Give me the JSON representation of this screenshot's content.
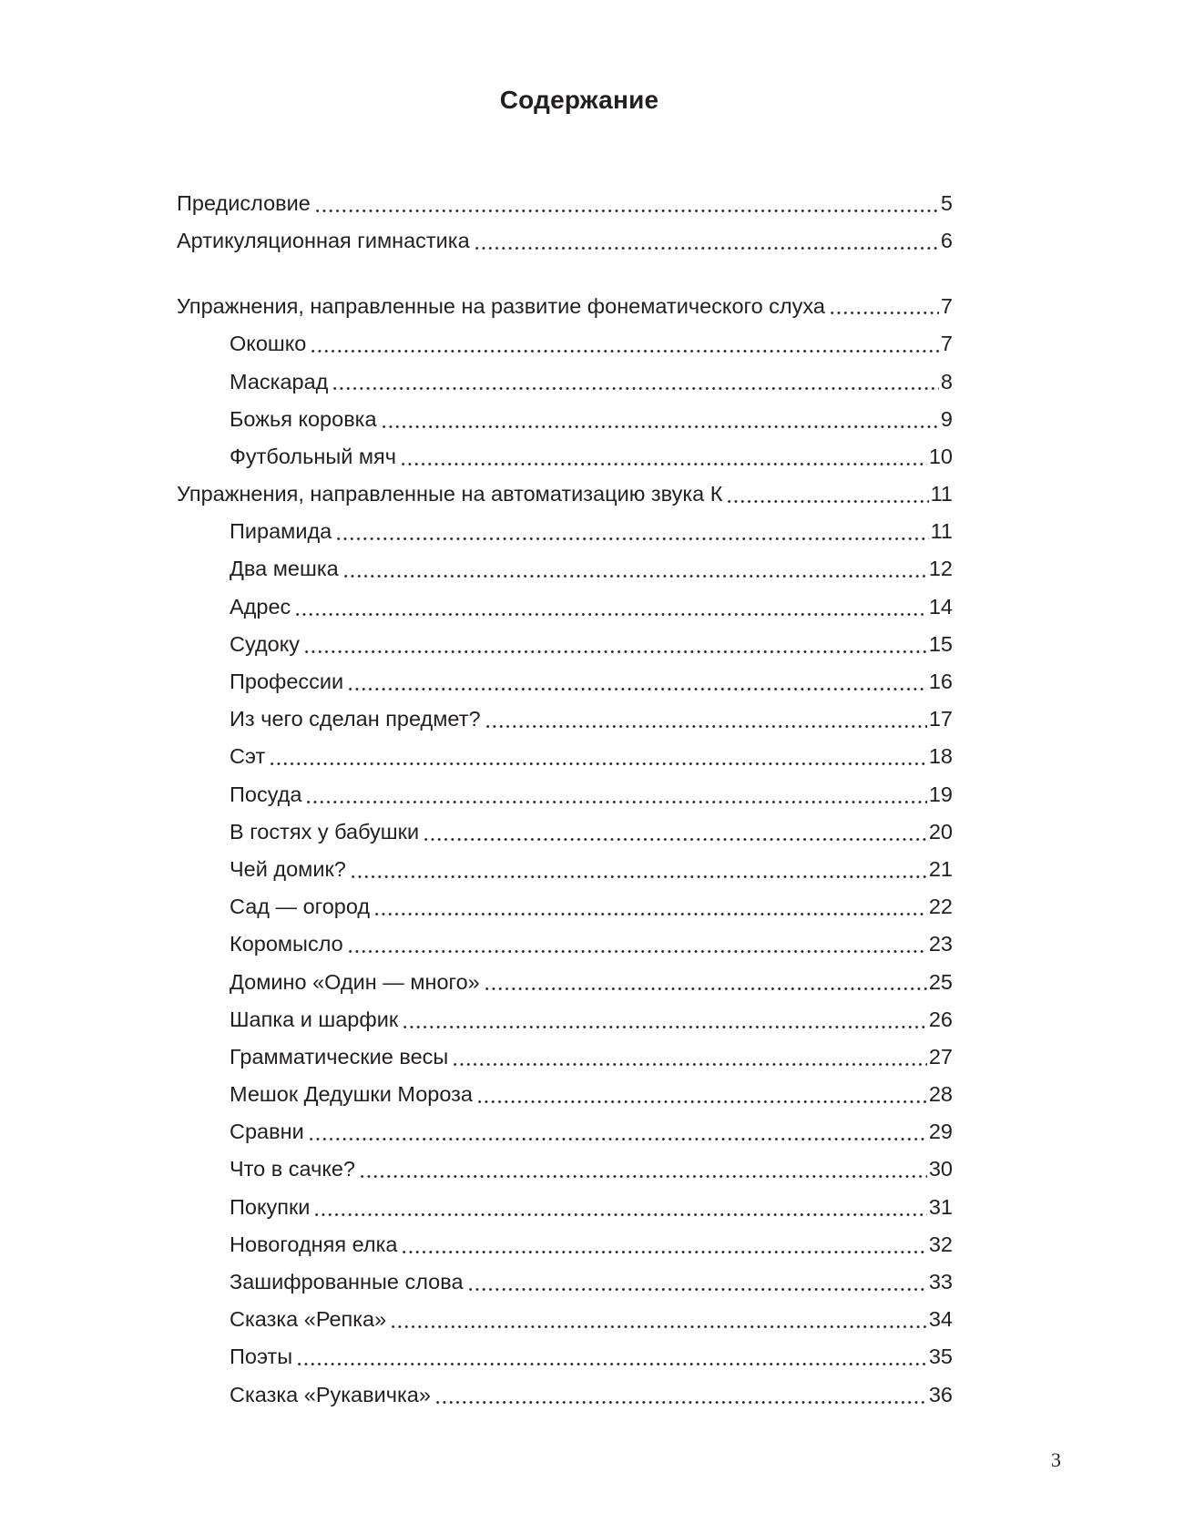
{
  "title": "Содержание",
  "entries": [
    {
      "text": "Предисловие",
      "page": "5",
      "level": 1
    },
    {
      "text": "Артикуляционная гимнастика",
      "page": "6",
      "level": 1
    },
    {
      "text": "Упражнения, направленные на развитие фонематического слуха",
      "page": "7",
      "level": 1,
      "wrap": true
    },
    {
      "text": "Окошко",
      "page": "7",
      "level": 2
    },
    {
      "text": "Маскарад",
      "page": "8",
      "level": 2
    },
    {
      "text": "Божья коровка",
      "page": "9",
      "level": 2
    },
    {
      "text": "Футбольный мяч",
      "page": "10",
      "level": 2
    },
    {
      "text": "Упражнения, направленные на автоматизацию звука К",
      "page": "11",
      "level": 1
    },
    {
      "text": "Пирамида",
      "page": "11",
      "level": 2
    },
    {
      "text": "Два мешка",
      "page": "12",
      "level": 2
    },
    {
      "text": "Адрес",
      "page": "14",
      "level": 2
    },
    {
      "text": "Судоку",
      "page": "15",
      "level": 2
    },
    {
      "text": "Профессии",
      "page": "16",
      "level": 2
    },
    {
      "text": "Из чего сделан предмет?",
      "page": "17",
      "level": 2
    },
    {
      "text": "Сэт",
      "page": "18",
      "level": 2
    },
    {
      "text": "Посуда",
      "page": "19",
      "level": 2
    },
    {
      "text": "В гостях у бабушки",
      "page": "20",
      "level": 2
    },
    {
      "text": "Чей домик?",
      "page": "21",
      "level": 2
    },
    {
      "text": "Сад — огород",
      "page": "22",
      "level": 2
    },
    {
      "text": "Коромысло",
      "page": "23",
      "level": 2
    },
    {
      "text": "Домино «Один — много»",
      "page": "25",
      "level": 2
    },
    {
      "text": "Шапка и шарфик",
      "page": "26",
      "level": 2
    },
    {
      "text": "Грамматические весы",
      "page": "27",
      "level": 2
    },
    {
      "text": "Мешок Дедушки Мороза",
      "page": "28",
      "level": 2
    },
    {
      "text": "Сравни",
      "page": "29",
      "level": 2
    },
    {
      "text": "Что в сачке?",
      "page": "30",
      "level": 2
    },
    {
      "text": "Покупки",
      "page": "31",
      "level": 2
    },
    {
      "text": "Новогодняя елка",
      "page": "32",
      "level": 2
    },
    {
      "text": "Зашифрованные слова",
      "page": "33",
      "level": 2
    },
    {
      "text": "Сказка «Репка»",
      "page": "34",
      "level": 2
    },
    {
      "text": "Поэты",
      "page": "35",
      "level": 2
    },
    {
      "text": "Сказка «Рукавичка»",
      "page": "36",
      "level": 2
    }
  ],
  "folio": "3"
}
